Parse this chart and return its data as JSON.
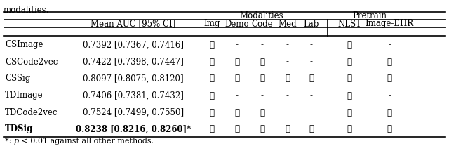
{
  "title_text": "modalities.",
  "footnote_parts": [
    "*: ",
    "p",
    " < 0.01 against all other methods."
  ],
  "footnote_italic": [
    false,
    true,
    false
  ],
  "col_headers_row1_mod": "Modalities",
  "col_headers_row1_pre": "Pretrain",
  "col_headers_row2": [
    "Mean AUC [95% CI]",
    "Img",
    "Demo",
    "Code",
    "Med",
    "Lab",
    "NLST",
    "Image-EHR"
  ],
  "rows": [
    [
      "CSImage",
      "0.7392 [0.7367, 0.7416]",
      1,
      0,
      0,
      0,
      0,
      1,
      0
    ],
    [
      "CSCode2vec",
      "0.7422 [0.7398, 0.7447]",
      1,
      1,
      1,
      0,
      0,
      1,
      1
    ],
    [
      "CSSig",
      "0.8097 [0.8075, 0.8120]",
      1,
      1,
      1,
      1,
      1,
      1,
      1
    ],
    [
      "TDImage",
      "0.7406 [0.7381, 0.7432]",
      1,
      0,
      0,
      0,
      0,
      1,
      0
    ],
    [
      "TDCode2vec",
      "0.7524 [0.7499, 0.7550]",
      1,
      1,
      1,
      0,
      0,
      1,
      1
    ],
    [
      "TDSig",
      "0.8238 [0.8216, 0.8260]*",
      1,
      1,
      1,
      1,
      1,
      1,
      1
    ]
  ],
  "bold_row": 5,
  "bg": "#ffffff",
  "fg": "#000000",
  "fs": 8.5
}
